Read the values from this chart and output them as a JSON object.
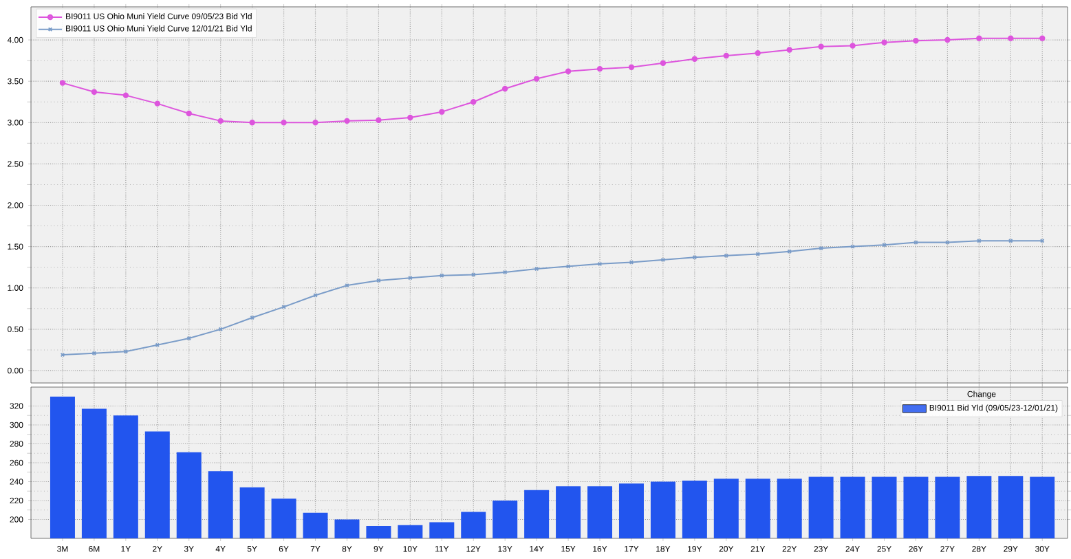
{
  "chart_data": [
    {
      "type": "line",
      "categories": [
        null,
        null,
        null,
        null,
        null,
        null,
        null,
        null,
        null,
        null,
        null,
        null,
        null,
        null,
        null,
        null,
        null,
        null,
        null,
        null,
        null,
        null,
        null,
        null,
        null,
        null,
        null,
        null,
        null,
        null,
        null,
        null
      ],
      "series": [
        {
          "name": "BI9011 US Ohio Muni Yield Curve 09/05/23 Bid Yld",
          "color": "#dd55dd",
          "marker": "circle",
          "values": [
            3.48,
            3.37,
            3.33,
            3.23,
            3.11,
            3.02,
            3.0,
            3.0,
            3.0,
            3.02,
            3.03,
            3.06,
            3.13,
            3.25,
            3.41,
            3.53,
            3.62,
            3.65,
            3.67,
            3.72,
            3.77,
            3.81,
            3.84,
            3.88,
            3.92,
            3.93,
            3.97,
            3.99,
            4.0,
            4.02,
            4.02,
            4.02
          ]
        },
        {
          "name": "BI9011 US Ohio Muni Yield Curve 12/01/21 Bid Yld",
          "color": "#7a9cc8",
          "marker": "cross",
          "values": [
            0.19,
            0.21,
            0.23,
            0.31,
            0.39,
            0.5,
            0.64,
            0.77,
            0.91,
            1.03,
            1.09,
            1.12,
            1.15,
            1.16,
            1.19,
            1.23,
            1.26,
            1.29,
            1.31,
            1.34,
            1.37,
            1.39,
            1.41,
            1.44,
            1.48,
            1.5,
            1.52,
            1.55,
            1.55,
            1.57,
            1.57,
            1.57
          ]
        }
      ],
      "ylim": [
        -0.15,
        4.4
      ],
      "yticks": [
        {
          "value": 0,
          "label": "0.00"
        },
        {
          "value": 0.5,
          "label": "0.50"
        },
        {
          "value": 1,
          "label": "1.00"
        },
        {
          "value": 1.5,
          "label": "1.50"
        },
        {
          "value": 2,
          "label": "2.00"
        },
        {
          "value": 2.5,
          "label": "2.50"
        },
        {
          "value": 3,
          "label": "3.00"
        },
        {
          "value": 3.5,
          "label": "3.50"
        },
        {
          "value": 4,
          "label": "4.00"
        }
      ],
      "grid": true,
      "legend": "top left",
      "tick_labels": "y",
      "line_style": "solid"
    },
    {
      "type": "bar",
      "categories": [
        "3M",
        "6M",
        "1Y",
        "2Y",
        "3Y",
        "4Y",
        "5Y",
        "6Y",
        "7Y",
        "8Y",
        "9Y",
        "10Y",
        "11Y",
        "12Y",
        "13Y",
        "14Y",
        "15Y",
        "16Y",
        "17Y",
        "18Y",
        "19Y",
        "20Y",
        "21Y",
        "22Y",
        "23Y",
        "24Y",
        "25Y",
        "26Y",
        "27Y",
        "28Y",
        "29Y",
        "30Y"
      ],
      "legend_title": "Change",
      "series": [
        {
          "name": "BI9011 Bid Yld (09/05/23-12/01/21)",
          "color": "#2255ee",
          "values": [
            330,
            317,
            310,
            293,
            271,
            251,
            234,
            222,
            207,
            200,
            193,
            194,
            197,
            208,
            220,
            231,
            235,
            235,
            238,
            240,
            241,
            243,
            243,
            243,
            245,
            245,
            245,
            245,
            245,
            246,
            246,
            245
          ]
        }
      ],
      "ylim": [
        180,
        340
      ],
      "yticks": [
        200,
        220,
        240,
        260,
        280,
        300,
        320
      ],
      "grid": true,
      "legend": "top right"
    }
  ]
}
